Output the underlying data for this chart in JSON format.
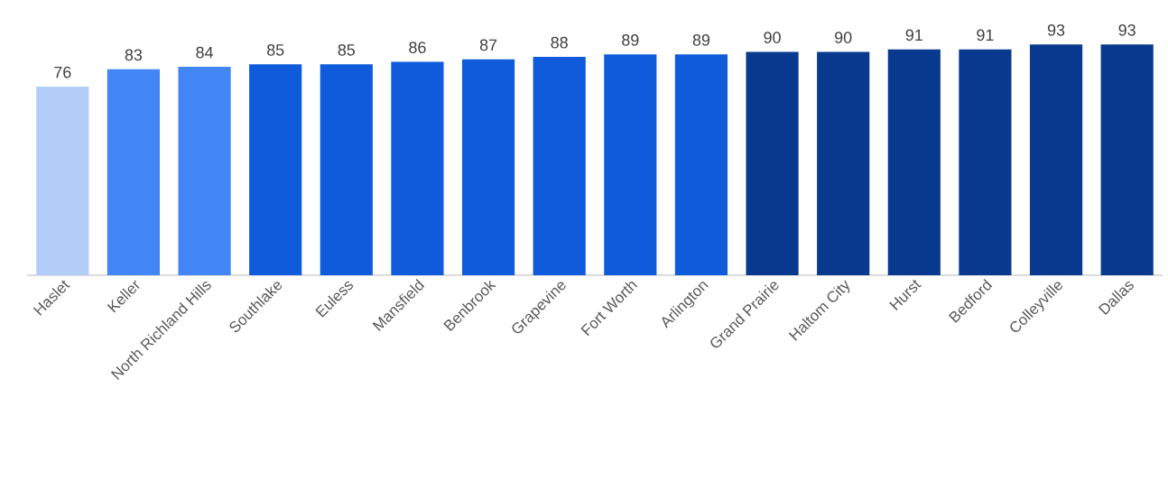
{
  "chart_data": {
    "type": "bar",
    "categories": [
      "Haslet",
      "Keller",
      "North Richland Hills",
      "Southlake",
      "Euless",
      "Mansfield",
      "Benbrook",
      "Grapevine",
      "Fort Worth",
      "Arlington",
      "Grand Prairie",
      "Haltom City",
      "Hurst",
      "Bedford",
      "Colleyville",
      "Dallas"
    ],
    "values": [
      76,
      83,
      84,
      85,
      85,
      86,
      87,
      88,
      89,
      89,
      90,
      90,
      91,
      91,
      93,
      93
    ],
    "colors": [
      "#b3cdf9",
      "#4285f4",
      "#4285f4",
      "#0f5bdb",
      "#0f5bdb",
      "#0f5bdb",
      "#0f5bdb",
      "#0f5bdb",
      "#0f5bdb",
      "#0f5bdb",
      "#0a3a8f",
      "#0a3a8f",
      "#0a3a8f",
      "#0a3a8f",
      "#0a3a8f",
      "#0a3a8f"
    ],
    "data_labels": true
  }
}
